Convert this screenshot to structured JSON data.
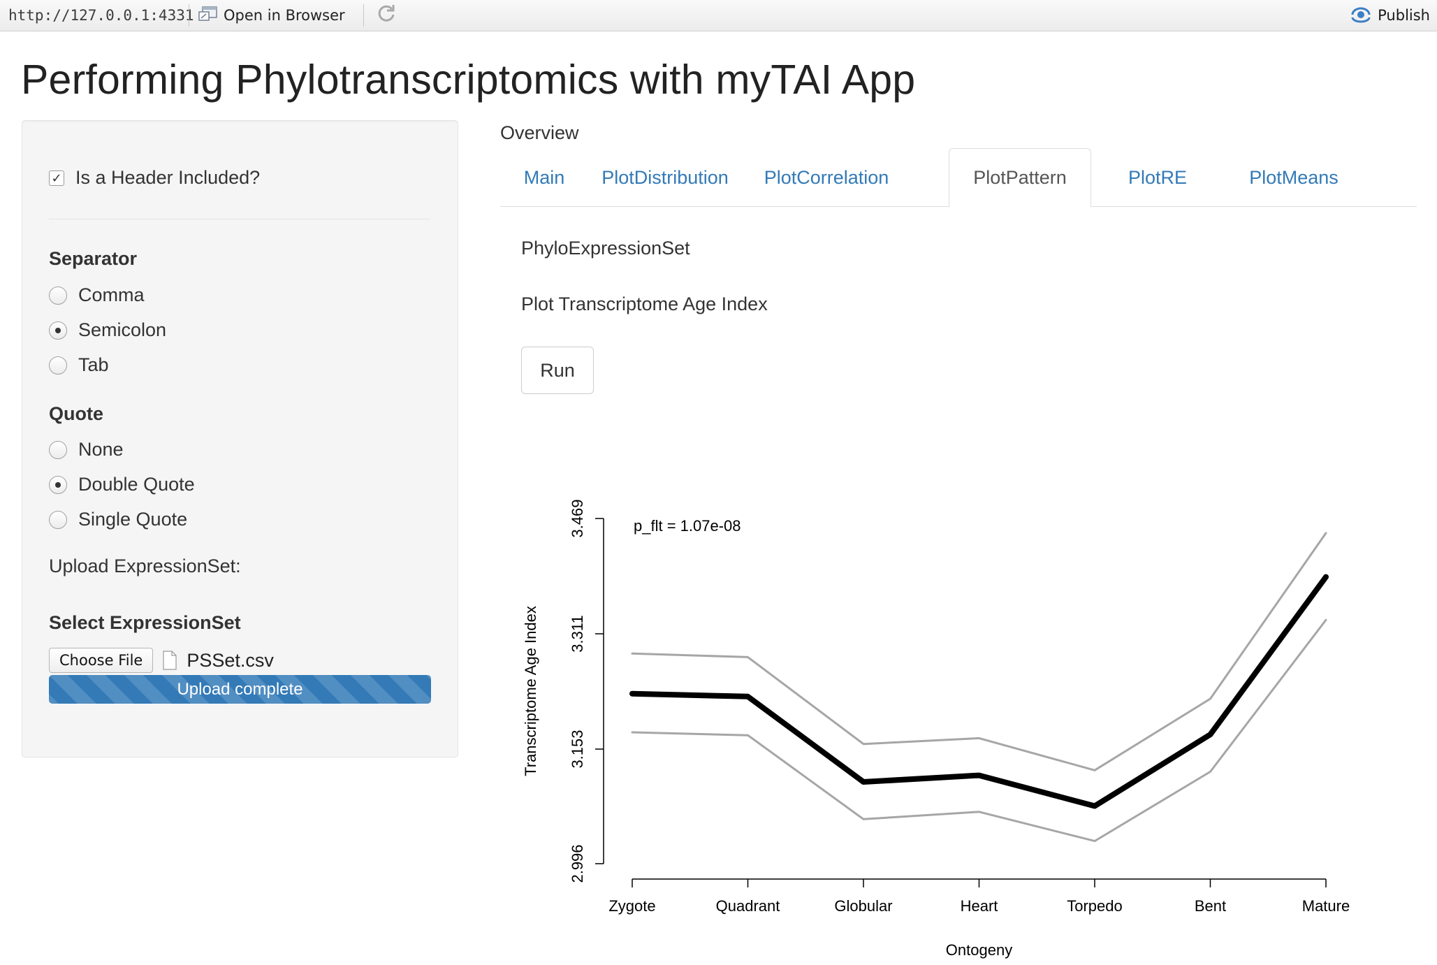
{
  "toolbar": {
    "url": "http://127.0.0.1:4331",
    "open_in_browser": "Open in Browser",
    "publish": "Publish"
  },
  "page_title": "Performing Phylotranscriptomics with myTAI App",
  "sidebar": {
    "header_checkbox": {
      "label": "Is a Header Included?",
      "checked": true,
      "mark": "✓"
    },
    "separator": {
      "title": "Separator",
      "options": [
        "Comma",
        "Semicolon",
        "Tab"
      ],
      "selected": "Semicolon"
    },
    "quote": {
      "title": "Quote",
      "options": [
        "None",
        "Double Quote",
        "Single Quote"
      ],
      "selected": "Double Quote"
    },
    "upload_label": "Upload ExpressionSet:",
    "select_label": "Select ExpressionSet",
    "choose_file_button": "Choose File",
    "file_name": "PSSet.csv",
    "progress": {
      "text": "Upload complete",
      "value": 1.0,
      "color": "#337ab7"
    }
  },
  "main": {
    "overview_label": "Overview",
    "tabs": [
      {
        "label": "Main",
        "active": false
      },
      {
        "label": "PlotDistribution",
        "active": false
      },
      {
        "label": "PlotCorrelation",
        "active": false
      },
      {
        "label": "PlotPattern",
        "active": true
      },
      {
        "label": "PlotRE",
        "active": false
      },
      {
        "label": "PlotMeans",
        "active": false
      }
    ],
    "phylo_label": "PhyloExpressionSet",
    "plot_tai_label": "Plot Transcriptome Age Index",
    "run_button": "Run"
  },
  "colors": {
    "link": "#337ab7",
    "mean_line": "#000000",
    "band_line": "#a6a6a6"
  },
  "chart_data": {
    "type": "line",
    "title": "",
    "annotation": "p_flt = 1.07e-08",
    "xlabel": "Ontogeny",
    "ylabel": "Transcriptome Age Index",
    "categories": [
      "Zygote",
      "Quadrant",
      "Globular",
      "Heart",
      "Torpedo",
      "Bent",
      "Mature"
    ],
    "yticks": [
      "2.996",
      "3.153",
      "3.311",
      "3.469"
    ],
    "ylim": [
      2.996,
      3.469
    ],
    "series": [
      {
        "role": "mean",
        "values": [
          3.229,
          3.225,
          3.108,
          3.117,
          3.075,
          3.173,
          3.389
        ]
      },
      {
        "role": "upper",
        "values": [
          3.284,
          3.279,
          3.16,
          3.168,
          3.124,
          3.222,
          3.449
        ]
      },
      {
        "role": "lower",
        "values": [
          3.176,
          3.172,
          3.057,
          3.067,
          3.027,
          3.122,
          3.33
        ]
      }
    ],
    "grid": false,
    "legend": "none"
  }
}
